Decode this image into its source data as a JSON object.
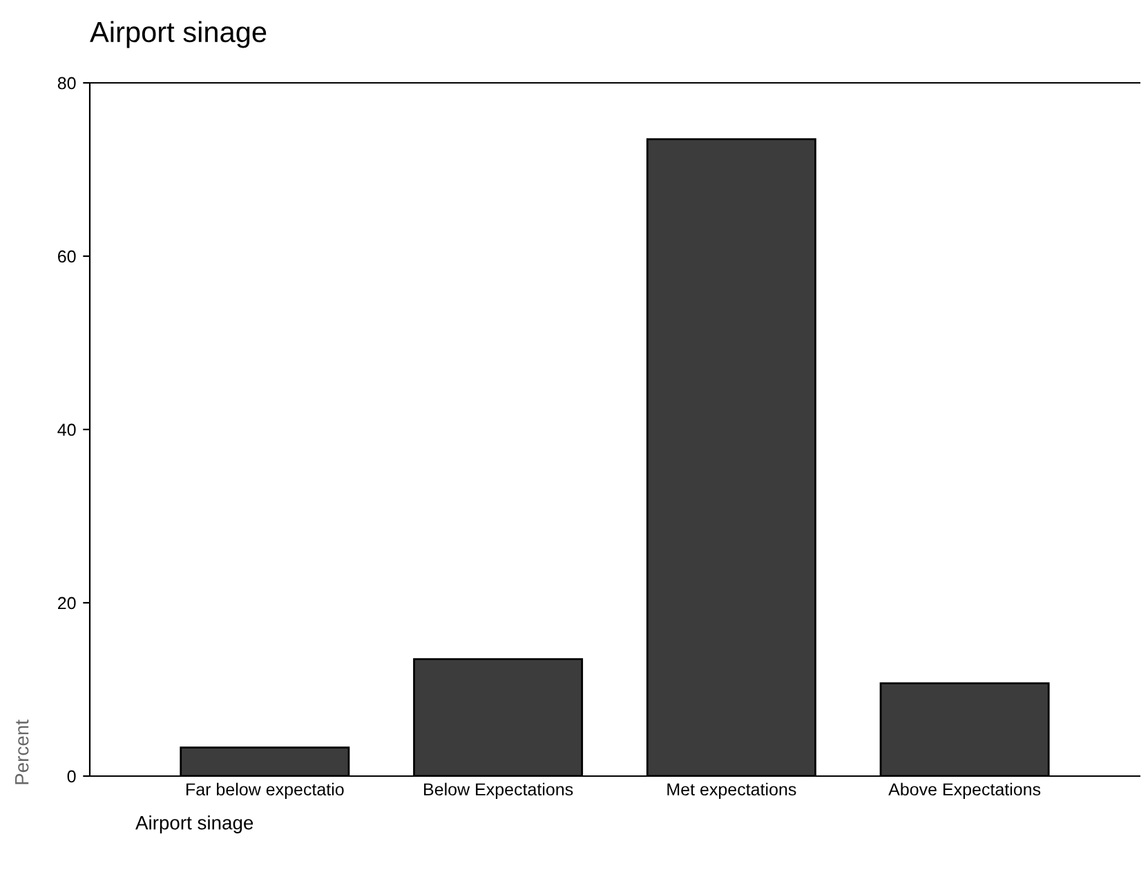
{
  "chart_data": {
    "type": "bar",
    "title": "Airport sinage",
    "xlabel": "Airport sinage",
    "ylabel": "Percent",
    "categories": [
      "Far below expectatio",
      "Below Expectations",
      "Met expectations",
      "Above Expectations"
    ],
    "values": [
      3.3,
      13.5,
      73.5,
      10.7
    ],
    "color": "#3c3c3c",
    "ylim": [
      0,
      80
    ],
    "yticks": [
      0,
      20,
      40,
      60,
      80
    ],
    "grid": false,
    "legend": false
  }
}
